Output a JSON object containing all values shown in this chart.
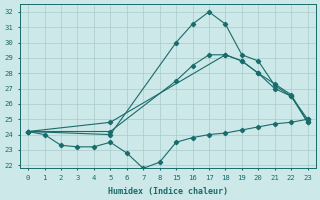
{
  "xlabel": "Humidex (Indice chaleur)",
  "bg_color": "#cce8e8",
  "grid_color": "#aacccc",
  "line_color": "#1a6b6b",
  "ylim": [
    21.8,
    32.5
  ],
  "yticks": [
    22,
    23,
    24,
    25,
    26,
    27,
    28,
    29,
    30,
    31,
    32
  ],
  "xlabels": [
    "0",
    "1",
    "2",
    "3",
    "4",
    "5",
    "6",
    "7",
    "8",
    "15",
    "16",
    "17",
    "18",
    "19",
    "20",
    "21",
    "22",
    "23"
  ],
  "series": [
    {
      "xi": [
        0,
        1,
        2,
        3,
        4,
        5,
        6,
        7,
        8,
        9,
        10,
        11,
        12,
        13,
        14,
        15,
        16,
        17
      ],
      "y": [
        24.2,
        24.0,
        23.3,
        23.2,
        23.2,
        23.5,
        22.8,
        21.8,
        22.2,
        23.5,
        23.8,
        24.0,
        24.1,
        24.3,
        24.5,
        24.7,
        24.8,
        25.0
      ]
    },
    {
      "xi": [
        0,
        5,
        9,
        10,
        11,
        12,
        13,
        14,
        15,
        16,
        17
      ],
      "y": [
        24.2,
        24.0,
        30.0,
        31.2,
        32.0,
        31.2,
        29.2,
        28.8,
        27.2,
        26.5,
        25.0
      ]
    },
    {
      "xi": [
        0,
        5,
        9,
        10,
        11,
        12,
        13,
        14,
        15,
        16,
        17
      ],
      "y": [
        24.2,
        24.2,
        27.5,
        28.5,
        29.2,
        29.2,
        28.8,
        28.0,
        27.0,
        26.5,
        24.8
      ]
    },
    {
      "xi": [
        0,
        5,
        12,
        13,
        14,
        15,
        16,
        17
      ],
      "y": [
        24.2,
        24.8,
        29.2,
        28.8,
        28.0,
        27.3,
        26.6,
        24.8
      ]
    }
  ]
}
